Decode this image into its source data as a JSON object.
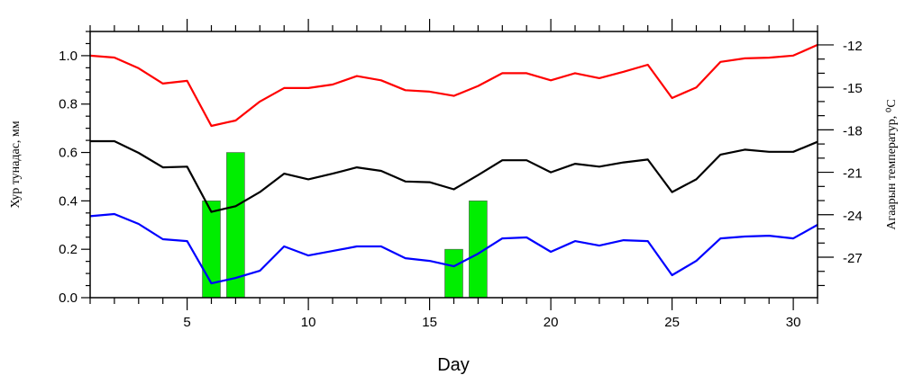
{
  "chart_data": {
    "type": "bar+line",
    "xlabel": "Day",
    "ylabel_left": "Хур тунадас, мм",
    "ylabel_right": "Агаарын температур, ⁰C",
    "xlim": [
      1,
      31
    ],
    "x_ticks": [
      5,
      10,
      15,
      20,
      25,
      30
    ],
    "ylim_left": [
      0,
      1.1
    ],
    "y_ticks_left": [
      "0.0",
      "0.2",
      "0.4",
      "0.6",
      "0.8",
      "1.0"
    ],
    "ylim_right": [
      -29.86,
      -11.05
    ],
    "y_ticks_right": [
      -12,
      -15,
      -18,
      -21,
      -24,
      -27
    ],
    "grid": false,
    "x": [
      1,
      2,
      3,
      4,
      5,
      6,
      7,
      8,
      9,
      10,
      11,
      12,
      13,
      14,
      15,
      16,
      17,
      18,
      19,
      20,
      21,
      22,
      23,
      24,
      25,
      26,
      27,
      28,
      29,
      30,
      31
    ],
    "bars": {
      "axis": "left",
      "color": "#00ee00",
      "days": [
        6,
        7,
        16,
        17
      ],
      "values": [
        0.4,
        0.6,
        0.2,
        0.4
      ]
    },
    "series": [
      {
        "axis": "right",
        "color": "#ff0000",
        "values": [
          -12.76,
          -12.89,
          -13.65,
          -14.73,
          -14.54,
          -17.72,
          -17.34,
          -16.0,
          -15.05,
          -15.05,
          -14.8,
          -14.2,
          -14.5,
          -15.2,
          -15.3,
          -15.6,
          -14.9,
          -14.0,
          -14.0,
          -14.5,
          -14.0,
          -14.35,
          -13.9,
          -13.4,
          -15.75,
          -15.0,
          -13.2,
          -12.95,
          -12.9,
          -12.75,
          -12.0
        ]
      },
      {
        "axis": "right",
        "color": "#000000",
        "values": [
          -18.8,
          -18.8,
          -19.63,
          -20.65,
          -20.6,
          -23.8,
          -23.4,
          -22.4,
          -21.1,
          -21.5,
          -21.1,
          -20.65,
          -20.9,
          -21.65,
          -21.7,
          -22.2,
          -21.2,
          -20.15,
          -20.15,
          -21.0,
          -20.4,
          -20.6,
          -20.3,
          -20.1,
          -22.4,
          -21.5,
          -19.75,
          -19.4,
          -19.55,
          -19.55,
          -18.85
        ]
      },
      {
        "axis": "right",
        "color": "#0000ff",
        "values": [
          -24.1,
          -23.95,
          -24.65,
          -25.73,
          -25.86,
          -28.85,
          -28.47,
          -27.96,
          -26.24,
          -26.88,
          -26.56,
          -26.24,
          -26.24,
          -27.07,
          -27.26,
          -27.64,
          -26.75,
          -25.67,
          -25.6,
          -26.62,
          -25.86,
          -26.18,
          -25.8,
          -25.86,
          -28.27,
          -27.26,
          -25.67,
          -25.54,
          -25.48,
          -25.67,
          -24.71
        ]
      }
    ]
  }
}
